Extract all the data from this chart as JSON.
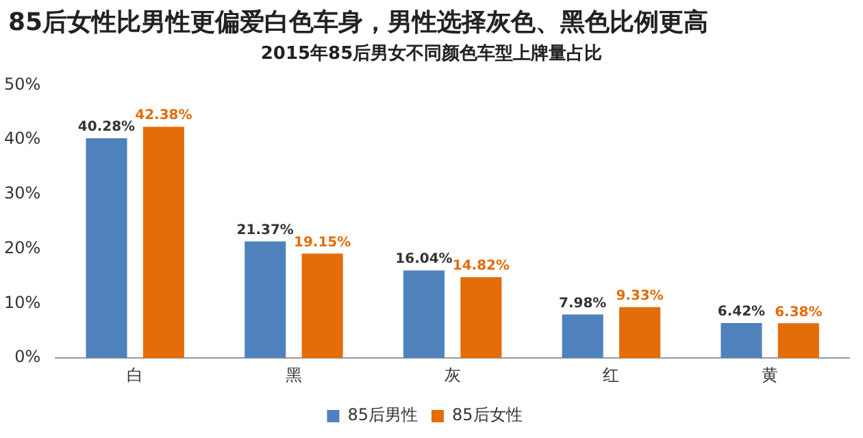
{
  "chart_data": {
    "type": "bar",
    "title": "85后女性比男性更偏爱白色车身，男性选择灰色、黑色比例更高",
    "subtitle": "2015年85后男女不同颜色车型上牌量占比",
    "categories": [
      "白",
      "黑",
      "灰",
      "红",
      "黄"
    ],
    "series": [
      {
        "name": "85后男性",
        "color": "#4f81bd",
        "values": [
          40.28,
          21.37,
          16.04,
          7.98,
          6.42
        ],
        "value_labels": [
          "40.28%",
          "21.37%",
          "16.04%",
          "7.98%",
          "6.42%"
        ]
      },
      {
        "name": "85后女性",
        "color": "#e46c0a",
        "values": [
          42.38,
          19.15,
          14.82,
          9.33,
          6.38
        ],
        "value_labels": [
          "42.38%",
          "19.15%",
          "14.82%",
          "9.33%",
          "6.38%"
        ]
      }
    ],
    "ylim": [
      0,
      50
    ],
    "yticks": [
      {
        "value": 0,
        "label": "0%"
      },
      {
        "value": 10,
        "label": "10%"
      },
      {
        "value": 20,
        "label": "20%"
      },
      {
        "value": 30,
        "label": "30%"
      },
      {
        "value": 40,
        "label": "40%"
      },
      {
        "value": 50,
        "label": "50%"
      }
    ],
    "grid": false,
    "legend": "bottom"
  }
}
